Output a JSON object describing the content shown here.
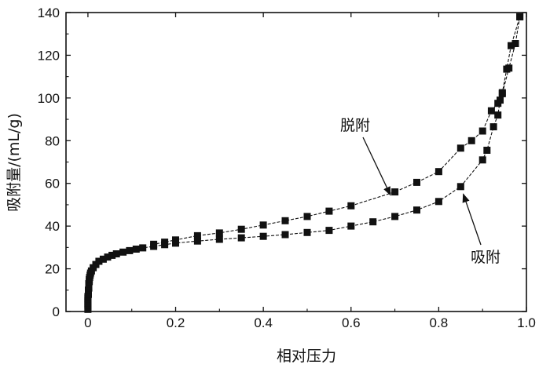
{
  "chart_data": {
    "type": "scatter",
    "title": "",
    "xlabel": "相对压力",
    "ylabel": "吸附量/(mL/g)",
    "xlim": [
      -0.05,
      1.0
    ],
    "ylim": [
      0,
      140
    ],
    "x_ticks": [
      "0",
      "0.2",
      "0.4",
      "0.6",
      "0.8",
      "1.0"
    ],
    "x_tick_values": [
      0,
      0.2,
      0.4,
      0.6,
      0.8,
      1.0
    ],
    "y_ticks": [
      "0",
      "20",
      "40",
      "60",
      "80",
      "100",
      "120",
      "140"
    ],
    "y_tick_values": [
      0,
      20,
      40,
      60,
      80,
      100,
      120,
      140
    ],
    "grid": false,
    "legend": "none",
    "series": [
      {
        "name": "吸附",
        "marker": "square",
        "color": "#111111",
        "line_style": "dashed",
        "points": [
          [
            0.0,
            1
          ],
          [
            0.0,
            2
          ],
          [
            0.0,
            3
          ],
          [
            0.0,
            4
          ],
          [
            0.0,
            5
          ],
          [
            0.0,
            6
          ],
          [
            0.0,
            7
          ],
          [
            0.001,
            8
          ],
          [
            0.001,
            9
          ],
          [
            0.001,
            10
          ],
          [
            0.002,
            11
          ],
          [
            0.002,
            12
          ],
          [
            0.002,
            13
          ],
          [
            0.003,
            14
          ],
          [
            0.003,
            15
          ],
          [
            0.004,
            16
          ],
          [
            0.005,
            17
          ],
          [
            0.006,
            18
          ],
          [
            0.008,
            19
          ],
          [
            0.012,
            20.5
          ],
          [
            0.018,
            22
          ],
          [
            0.025,
            23.5
          ],
          [
            0.035,
            24.5
          ],
          [
            0.045,
            25.5
          ],
          [
            0.055,
            26.3
          ],
          [
            0.065,
            27
          ],
          [
            0.08,
            27.8
          ],
          [
            0.095,
            28.5
          ],
          [
            0.11,
            29.2
          ],
          [
            0.125,
            29.8
          ],
          [
            0.15,
            30.5
          ],
          [
            0.175,
            31.3
          ],
          [
            0.2,
            32
          ],
          [
            0.25,
            33
          ],
          [
            0.3,
            33.8
          ],
          [
            0.35,
            34.5
          ],
          [
            0.4,
            35.2
          ],
          [
            0.45,
            36
          ],
          [
            0.5,
            37
          ],
          [
            0.55,
            38
          ],
          [
            0.6,
            40
          ],
          [
            0.65,
            42
          ],
          [
            0.7,
            44.5
          ],
          [
            0.75,
            47.5
          ],
          [
            0.8,
            51.5
          ],
          [
            0.85,
            58.5
          ],
          [
            0.9,
            71
          ],
          [
            0.91,
            75.5
          ],
          [
            0.925,
            86.5
          ],
          [
            0.935,
            92
          ],
          [
            0.94,
            99
          ],
          [
            0.945,
            102.5
          ],
          [
            0.955,
            113.5
          ],
          [
            0.965,
            124.5
          ],
          [
            0.985,
            138
          ]
        ]
      },
      {
        "name": "脱附",
        "marker": "square",
        "color": "#111111",
        "line_style": "dashed",
        "points": [
          [
            0.985,
            138
          ],
          [
            0.975,
            125.5
          ],
          [
            0.96,
            114
          ],
          [
            0.945,
            102
          ],
          [
            0.935,
            97.5
          ],
          [
            0.92,
            94
          ],
          [
            0.9,
            84.5
          ],
          [
            0.875,
            80
          ],
          [
            0.85,
            76.5
          ],
          [
            0.8,
            65.5
          ],
          [
            0.75,
            60.5
          ],
          [
            0.7,
            56
          ],
          [
            0.6,
            49.5
          ],
          [
            0.55,
            47
          ],
          [
            0.5,
            44.5
          ],
          [
            0.45,
            42.5
          ],
          [
            0.4,
            40.5
          ],
          [
            0.35,
            38.5
          ],
          [
            0.3,
            36.8
          ],
          [
            0.25,
            35.5
          ],
          [
            0.2,
            33.5
          ],
          [
            0.175,
            32.5
          ],
          [
            0.15,
            31.5
          ]
        ]
      }
    ],
    "annotations": [
      {
        "text": "脱附",
        "series": "脱附"
      },
      {
        "text": "吸附",
        "series": "吸附"
      }
    ]
  }
}
